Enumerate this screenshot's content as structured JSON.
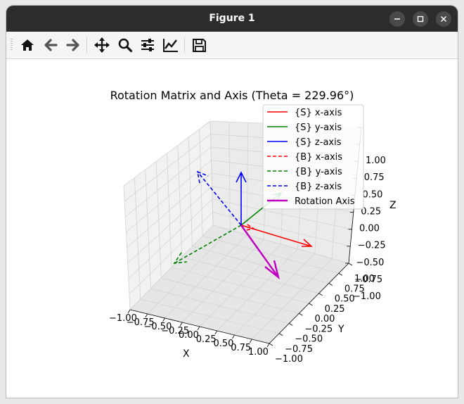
{
  "window": {
    "title": "Figure 1"
  },
  "toolbar": {
    "buttons": [
      {
        "name": "home-icon",
        "label": "Home"
      },
      {
        "name": "back-icon",
        "label": "Back"
      },
      {
        "name": "forward-icon",
        "label": "Forward"
      },
      {
        "name": "pan-icon",
        "label": "Pan"
      },
      {
        "name": "zoom-icon",
        "label": "Zoom"
      },
      {
        "name": "configure-subplots-icon",
        "label": "Subplots"
      },
      {
        "name": "edit-axis-icon",
        "label": "Customize"
      },
      {
        "name": "save-icon",
        "label": "Save"
      }
    ]
  },
  "plot": {
    "title": "Rotation Matrix and Axis (Theta = 229.96°)",
    "xlabel": "X",
    "ylabel": "Y",
    "zlabel": "Z",
    "x_ticks": [
      "−1.00",
      "−0.75",
      "−0.50",
      "−0.25",
      "0.00",
      "0.25",
      "0.50",
      "0.75",
      "1.00"
    ],
    "y_ticks": [
      "−1.00",
      "−0.75",
      "−0.50",
      "−0.25",
      "0.00",
      "0.25",
      "0.50",
      "0.75",
      "1.00"
    ],
    "z_ticks": [
      "1.00",
      "0.75",
      "0.50",
      "0.25",
      "0.00",
      "−0.25",
      "−0.50",
      "−0.75",
      "−1.00"
    ],
    "legend": [
      {
        "label": "{S} x-axis",
        "color": "#ff0000",
        "style": "solid"
      },
      {
        "label": "{S} y-axis",
        "color": "#008000",
        "style": "solid"
      },
      {
        "label": "{S} z-axis",
        "color": "#0000ff",
        "style": "solid"
      },
      {
        "label": "{B} x-axis",
        "color": "#ff0000",
        "style": "dashed"
      },
      {
        "label": "{B} y-axis",
        "color": "#008000",
        "style": "dashed"
      },
      {
        "label": "{B} z-axis",
        "color": "#0000ff",
        "style": "dashed"
      },
      {
        "label": "Rotation Axis",
        "color": "#bf00bf",
        "style": "solid"
      }
    ]
  }
}
